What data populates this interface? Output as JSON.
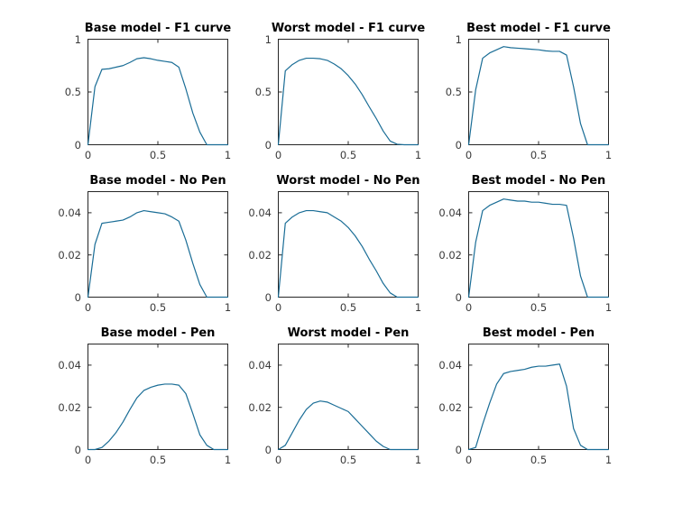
{
  "colors": {
    "background": "#ffffff",
    "line": "#1a6d96",
    "axis": "#262626",
    "tick_label": "#3a3a3a",
    "title": "#000000"
  },
  "chart_data": [
    {
      "type": "line",
      "title": "Base model - F1 curve",
      "xlabel": "",
      "ylabel": "",
      "xlim": [
        0,
        1
      ],
      "ylim": [
        0,
        1
      ],
      "xticks": [
        0,
        0.5,
        1
      ],
      "xtick_labels": [
        "0",
        "0.5",
        "1"
      ],
      "yticks": [
        0,
        0.5,
        1
      ],
      "ytick_labels": [
        "0",
        "0.5",
        "1"
      ],
      "grid": false,
      "legend": null,
      "x": [
        0,
        0.05,
        0.1,
        0.15,
        0.2,
        0.25,
        0.3,
        0.35,
        0.4,
        0.45,
        0.5,
        0.55,
        0.6,
        0.65,
        0.7,
        0.75,
        0.8,
        0.85,
        0.9,
        0.95,
        1
      ],
      "y": [
        0,
        0.55,
        0.715,
        0.72,
        0.735,
        0.75,
        0.78,
        0.815,
        0.825,
        0.815,
        0.8,
        0.79,
        0.78,
        0.735,
        0.53,
        0.3,
        0.12,
        0,
        0,
        0,
        0
      ]
    },
    {
      "type": "line",
      "title": "Worst model - F1 curve",
      "xlabel": "",
      "ylabel": "",
      "xlim": [
        0,
        1
      ],
      "ylim": [
        0,
        1
      ],
      "xticks": [
        0,
        0.5,
        1
      ],
      "xtick_labels": [
        "0",
        "0.5",
        "1"
      ],
      "yticks": [
        0,
        0.5,
        1
      ],
      "ytick_labels": [
        "0",
        "0.5",
        "1"
      ],
      "grid": false,
      "legend": null,
      "x": [
        0,
        0.05,
        0.1,
        0.15,
        0.2,
        0.25,
        0.3,
        0.35,
        0.4,
        0.45,
        0.5,
        0.55,
        0.6,
        0.65,
        0.7,
        0.75,
        0.8,
        0.85,
        0.9,
        0.95,
        1
      ],
      "y": [
        0,
        0.7,
        0.76,
        0.8,
        0.82,
        0.82,
        0.815,
        0.8,
        0.765,
        0.72,
        0.655,
        0.575,
        0.475,
        0.36,
        0.25,
        0.13,
        0.035,
        0.005,
        0,
        0,
        0
      ]
    },
    {
      "type": "line",
      "title": "Best model - F1 curve",
      "xlabel": "",
      "ylabel": "",
      "xlim": [
        0,
        1
      ],
      "ylim": [
        0,
        1
      ],
      "xticks": [
        0,
        0.5,
        1
      ],
      "xtick_labels": [
        "0",
        "0.5",
        "1"
      ],
      "yticks": [
        0,
        0.5,
        1
      ],
      "ytick_labels": [
        "0",
        "0.5",
        "1"
      ],
      "grid": false,
      "legend": null,
      "x": [
        0,
        0.05,
        0.1,
        0.15,
        0.2,
        0.25,
        0.3,
        0.35,
        0.4,
        0.45,
        0.5,
        0.55,
        0.6,
        0.65,
        0.7,
        0.75,
        0.8,
        0.85,
        0.9,
        0.95,
        1
      ],
      "y": [
        0,
        0.52,
        0.82,
        0.87,
        0.9,
        0.93,
        0.92,
        0.915,
        0.91,
        0.905,
        0.9,
        0.89,
        0.885,
        0.885,
        0.85,
        0.55,
        0.2,
        0,
        0,
        0,
        0
      ]
    },
    {
      "type": "line",
      "title": "Base model - No Pen",
      "xlabel": "",
      "ylabel": "",
      "xlim": [
        0,
        1
      ],
      "ylim": [
        0,
        0.05
      ],
      "xticks": [
        0,
        0.5,
        1
      ],
      "xtick_labels": [
        "0",
        "0.5",
        "1"
      ],
      "yticks": [
        0,
        0.02,
        0.04
      ],
      "ytick_labels": [
        "0",
        "0.02",
        "0.04"
      ],
      "grid": false,
      "legend": null,
      "x": [
        0,
        0.05,
        0.1,
        0.15,
        0.2,
        0.25,
        0.3,
        0.35,
        0.4,
        0.45,
        0.5,
        0.55,
        0.6,
        0.65,
        0.7,
        0.75,
        0.8,
        0.85,
        0.9,
        0.95,
        1
      ],
      "y": [
        0,
        0.025,
        0.035,
        0.0355,
        0.036,
        0.0365,
        0.038,
        0.04,
        0.041,
        0.0405,
        0.04,
        0.0395,
        0.038,
        0.036,
        0.027,
        0.016,
        0.006,
        0,
        0,
        0,
        0
      ]
    },
    {
      "type": "line",
      "title": "Worst model - No Pen",
      "xlabel": "",
      "ylabel": "",
      "xlim": [
        0,
        1
      ],
      "ylim": [
        0,
        0.05
      ],
      "xticks": [
        0,
        0.5,
        1
      ],
      "xtick_labels": [
        "0",
        "0.5",
        "1"
      ],
      "yticks": [
        0,
        0.02,
        0.04
      ],
      "ytick_labels": [
        "0",
        "0.02",
        "0.04"
      ],
      "grid": false,
      "legend": null,
      "x": [
        0,
        0.05,
        0.1,
        0.15,
        0.2,
        0.25,
        0.3,
        0.35,
        0.4,
        0.45,
        0.5,
        0.55,
        0.6,
        0.65,
        0.7,
        0.75,
        0.8,
        0.85,
        0.9,
        0.95,
        1
      ],
      "y": [
        0,
        0.035,
        0.038,
        0.04,
        0.041,
        0.041,
        0.0405,
        0.04,
        0.038,
        0.036,
        0.033,
        0.029,
        0.024,
        0.018,
        0.0125,
        0.0065,
        0.002,
        0,
        0,
        0,
        0
      ]
    },
    {
      "type": "line",
      "title": "Best model - No Pen",
      "xlabel": "",
      "ylabel": "",
      "xlim": [
        0,
        1
      ],
      "ylim": [
        0,
        0.05
      ],
      "xticks": [
        0,
        0.5,
        1
      ],
      "xtick_labels": [
        "0",
        "0.5",
        "1"
      ],
      "yticks": [
        0,
        0.02,
        0.04
      ],
      "ytick_labels": [
        "0",
        "0.02",
        "0.04"
      ],
      "grid": false,
      "legend": null,
      "x": [
        0,
        0.05,
        0.1,
        0.15,
        0.2,
        0.25,
        0.3,
        0.35,
        0.4,
        0.45,
        0.5,
        0.55,
        0.6,
        0.65,
        0.7,
        0.75,
        0.8,
        0.85,
        0.9,
        0.95,
        1
      ],
      "y": [
        0,
        0.026,
        0.041,
        0.0435,
        0.045,
        0.0465,
        0.046,
        0.0455,
        0.0455,
        0.045,
        0.045,
        0.0445,
        0.044,
        0.044,
        0.0435,
        0.028,
        0.01,
        0,
        0,
        0,
        0
      ]
    },
    {
      "type": "line",
      "title": "Base model - Pen",
      "xlabel": "",
      "ylabel": "",
      "xlim": [
        0,
        1
      ],
      "ylim": [
        0,
        0.05
      ],
      "xticks": [
        0,
        0.5,
        1
      ],
      "xtick_labels": [
        "0",
        "0.5",
        "1"
      ],
      "yticks": [
        0,
        0.02,
        0.04
      ],
      "ytick_labels": [
        "0",
        "0.02",
        "0.04"
      ],
      "grid": false,
      "legend": null,
      "x": [
        0,
        0.05,
        0.1,
        0.15,
        0.2,
        0.25,
        0.3,
        0.35,
        0.4,
        0.45,
        0.5,
        0.55,
        0.6,
        0.65,
        0.7,
        0.75,
        0.8,
        0.85,
        0.9,
        0.95,
        1
      ],
      "y": [
        0,
        0,
        0.001,
        0.004,
        0.008,
        0.013,
        0.019,
        0.0245,
        0.028,
        0.0295,
        0.0305,
        0.031,
        0.031,
        0.0305,
        0.0265,
        0.017,
        0.007,
        0.002,
        0,
        0,
        0
      ]
    },
    {
      "type": "line",
      "title": "Worst model - Pen",
      "xlabel": "",
      "ylabel": "",
      "xlim": [
        0,
        1
      ],
      "ylim": [
        0,
        0.05
      ],
      "xticks": [
        0,
        0.5,
        1
      ],
      "xtick_labels": [
        "0",
        "0.5",
        "1"
      ],
      "yticks": [
        0,
        0.02,
        0.04
      ],
      "ytick_labels": [
        "0",
        "0.02",
        "0.04"
      ],
      "grid": false,
      "legend": null,
      "x": [
        0,
        0.05,
        0.1,
        0.15,
        0.2,
        0.25,
        0.3,
        0.35,
        0.4,
        0.45,
        0.5,
        0.55,
        0.6,
        0.65,
        0.7,
        0.75,
        0.8,
        0.85,
        0.9,
        0.95,
        1
      ],
      "y": [
        0,
        0.002,
        0.008,
        0.014,
        0.019,
        0.022,
        0.023,
        0.0225,
        0.021,
        0.0195,
        0.018,
        0.0145,
        0.011,
        0.0075,
        0.004,
        0.0015,
        0,
        0,
        0,
        0,
        0
      ]
    },
    {
      "type": "line",
      "title": "Best model - Pen",
      "xlabel": "",
      "ylabel": "",
      "xlim": [
        0,
        1
      ],
      "ylim": [
        0,
        0.05
      ],
      "xticks": [
        0,
        0.5,
        1
      ],
      "xtick_labels": [
        "0",
        "0.5",
        "1"
      ],
      "yticks": [
        0,
        0.02,
        0.04
      ],
      "ytick_labels": [
        "0",
        "0.02",
        "0.04"
      ],
      "grid": false,
      "legend": null,
      "x": [
        0,
        0.05,
        0.1,
        0.15,
        0.2,
        0.25,
        0.3,
        0.35,
        0.4,
        0.45,
        0.5,
        0.55,
        0.6,
        0.65,
        0.7,
        0.75,
        0.8,
        0.85,
        0.9,
        0.95,
        1
      ],
      "y": [
        0,
        0.001,
        0.012,
        0.022,
        0.031,
        0.036,
        0.037,
        0.0375,
        0.038,
        0.039,
        0.0395,
        0.0395,
        0.04,
        0.0405,
        0.03,
        0.01,
        0.002,
        0,
        0,
        0,
        0
      ]
    }
  ]
}
